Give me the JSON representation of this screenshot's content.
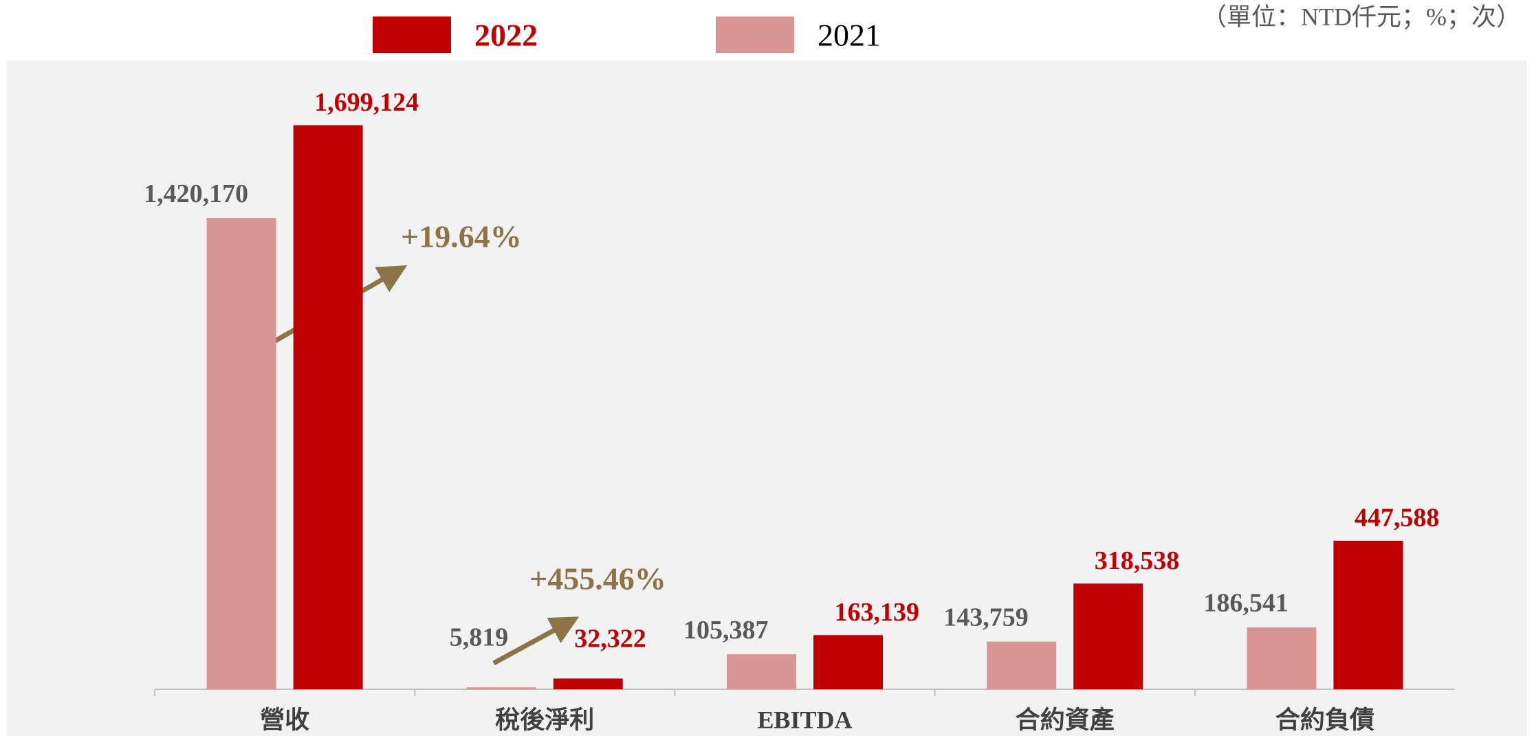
{
  "chart_data": {
    "type": "bar",
    "unit_note": "（單位：NTD仟元；%；次）",
    "categories": [
      "營收",
      "稅後淨利",
      "EBITDA",
      "合約資產",
      "合約負債"
    ],
    "series": [
      {
        "name": "2022",
        "color": "#c00000",
        "values": [
          1699124,
          32322,
          163139,
          318538,
          447588
        ],
        "value_labels": [
          "1,699,124",
          "32,322",
          "163,139",
          "318,538",
          "447,588"
        ]
      },
      {
        "name": "2021",
        "color": "#d99594",
        "values": [
          1420170,
          5819,
          105387,
          143759,
          186541
        ],
        "value_labels": [
          "1,420,170",
          "5,819",
          "105,387",
          "143,759",
          "186,541"
        ]
      }
    ],
    "annotations": [
      "+19.64%",
      "+455.46%"
    ],
    "ylim": [
      0,
      2000000
    ],
    "grid": false
  }
}
